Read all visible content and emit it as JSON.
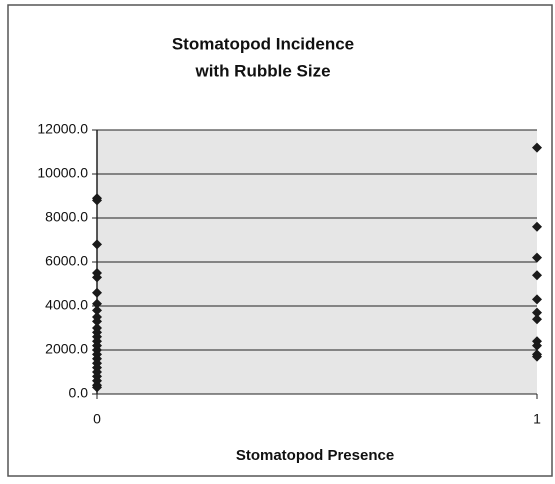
{
  "chart_data": {
    "type": "scatter",
    "title": [
      "Stomatopod Incidence",
      "with Rubble Size"
    ],
    "x_label": "Stomatopod Presence",
    "series": [
      {
        "color": "#1a1a1a",
        "x": [
          0,
          0,
          0,
          0,
          0,
          0,
          0,
          0,
          0,
          0,
          0,
          0,
          0,
          0,
          0,
          0,
          0,
          0,
          0,
          0,
          0,
          0,
          0,
          0,
          0,
          1,
          1,
          1,
          1,
          1,
          1,
          1,
          1,
          1,
          1,
          1
        ],
        "values": [
          8900,
          8800,
          6800,
          5500,
          5300,
          4600,
          4100,
          3800,
          3500,
          3300,
          3000,
          2800,
          2600,
          2400,
          2200,
          2000,
          1800,
          1600,
          1400,
          1200,
          1000,
          800,
          600,
          400,
          300,
          11200,
          7600,
          6200,
          5400,
          4300,
          3700,
          3400,
          2400,
          2200,
          1800,
          1700
        ]
      }
    ],
    "xlim": [
      0,
      1
    ],
    "xticks": [
      0,
      1
    ],
    "ylim": [
      0,
      12000
    ],
    "yticks": [
      {
        "value": 0,
        "label": "0.0"
      },
      {
        "value": 2000,
        "label": "2000.0"
      },
      {
        "value": 4000,
        "label": "4000.0"
      },
      {
        "value": 6000,
        "label": "6000.0"
      },
      {
        "value": 8000,
        "label": "8000.0"
      },
      {
        "value": 10000,
        "label": "10000.0"
      },
      {
        "value": 12000,
        "label": "12000.0"
      }
    ],
    "grid": true,
    "plot_background": "#e6e6e6"
  }
}
